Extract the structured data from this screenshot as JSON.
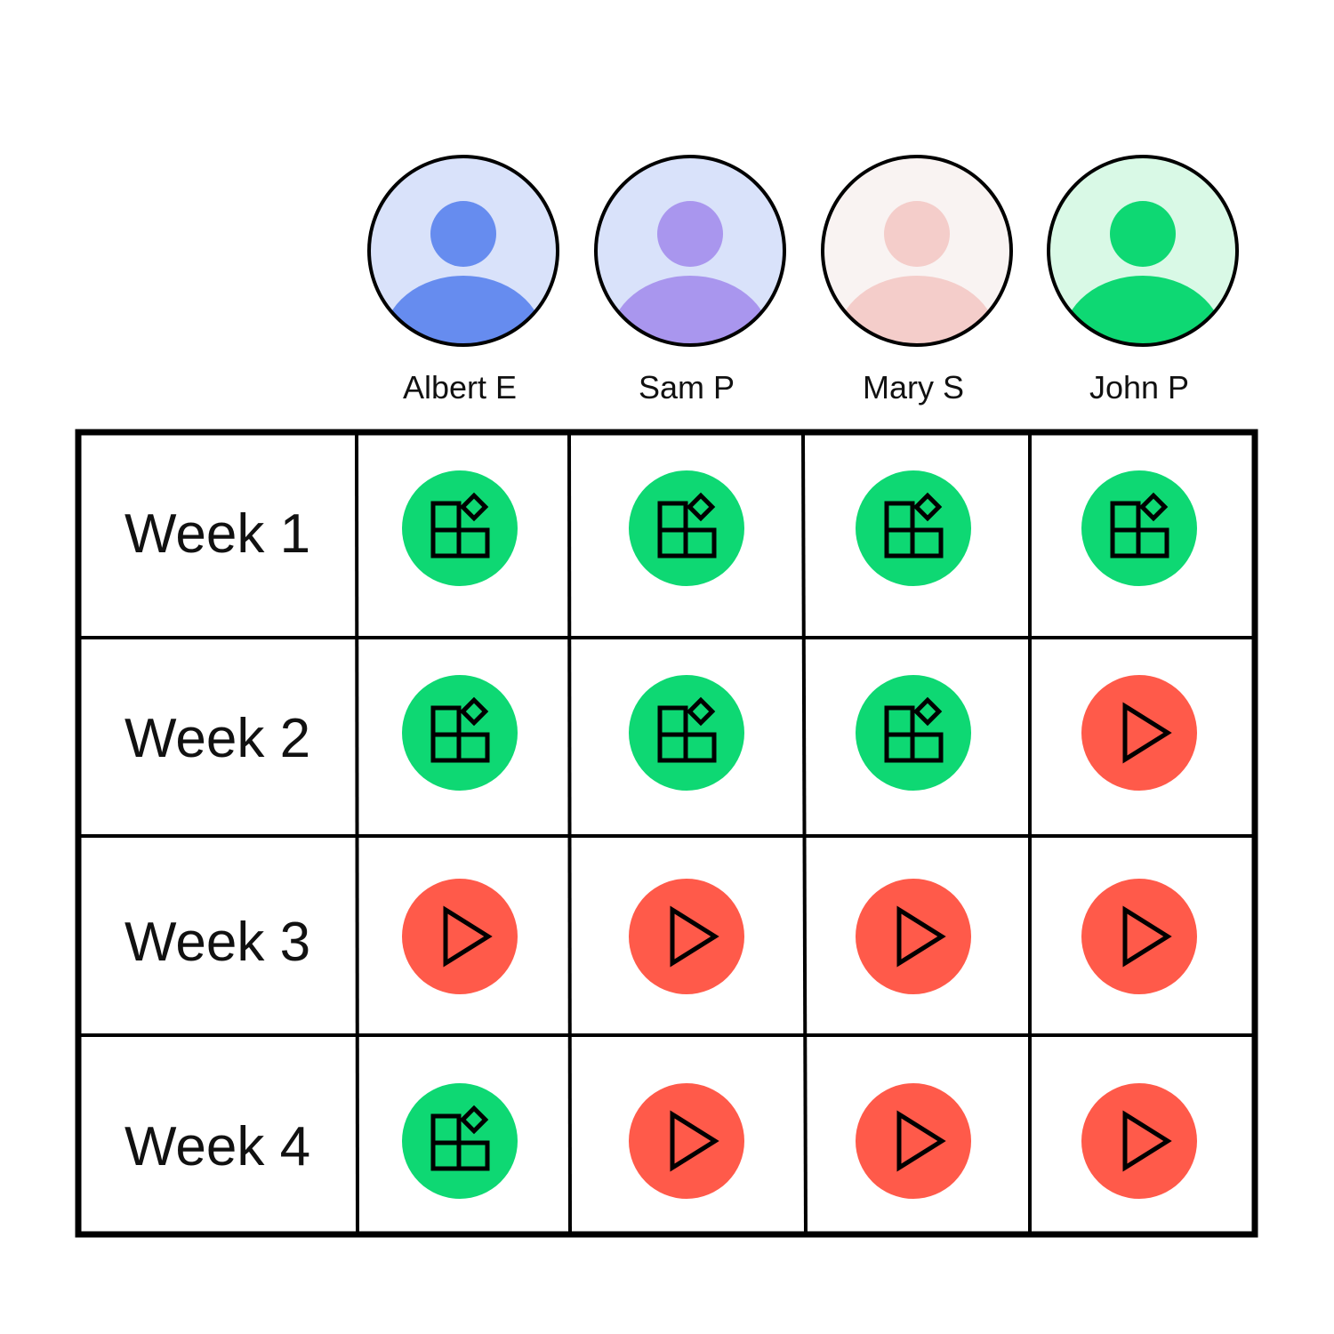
{
  "people": [
    {
      "name": "Albert E",
      "bg": "#d9e2fa",
      "fg": "#668cef"
    },
    {
      "name": "Sam P",
      "bg": "#d9e2fa",
      "fg": "#a996ee"
    },
    {
      "name": "Mary S",
      "bg": "#f9f3f2",
      "fg": "#f4cdca"
    },
    {
      "name": "John P",
      "bg": "#d9f9e6",
      "fg": "#0ed873"
    }
  ],
  "weeks": [
    {
      "label": "Week 1",
      "status": [
        "apps",
        "apps",
        "apps",
        "apps"
      ]
    },
    {
      "label": "Week 2",
      "status": [
        "apps",
        "apps",
        "apps",
        "play"
      ]
    },
    {
      "label": "Week 3",
      "status": [
        "play",
        "play",
        "play",
        "play"
      ]
    },
    {
      "label": "Week 4",
      "status": [
        "apps",
        "play",
        "play",
        "play"
      ]
    }
  ],
  "colors": {
    "apps": "#0ed873",
    "play": "#ff5a4a"
  }
}
